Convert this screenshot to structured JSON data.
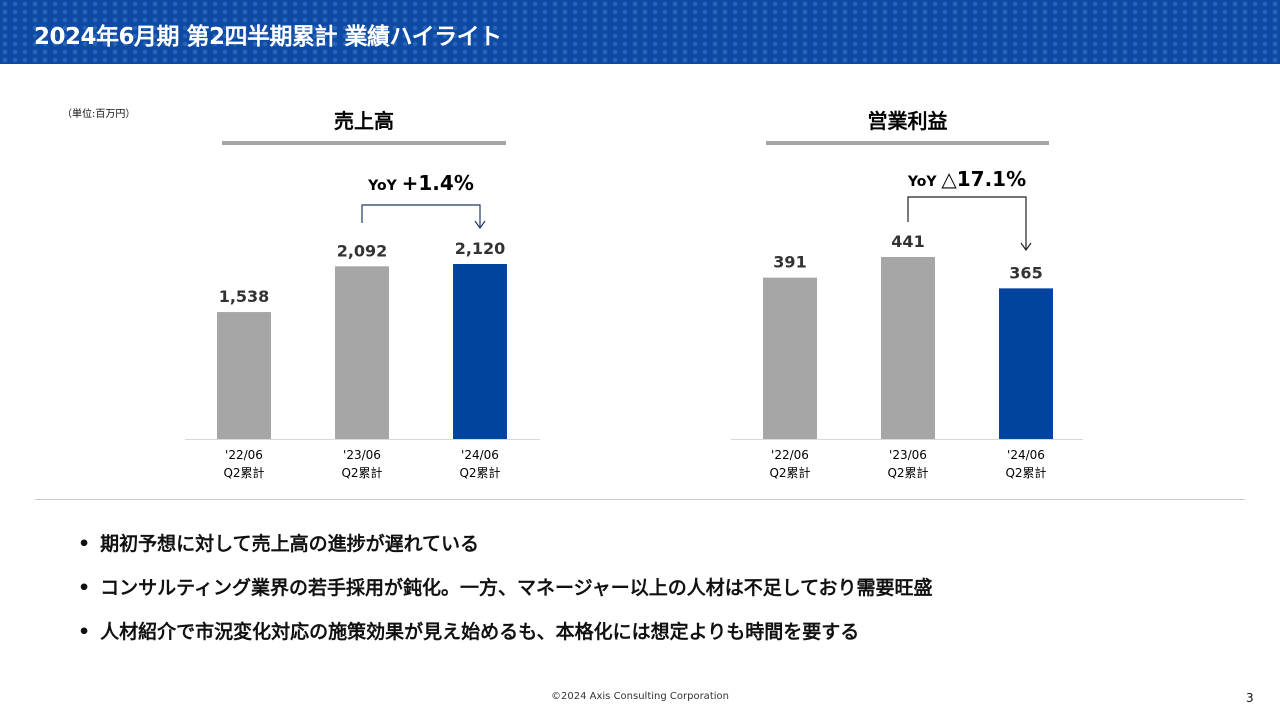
{
  "title": "2024年6月期 第2四半期累計 業績ハイライト",
  "unit": "（単位:百万円）",
  "chart_data": [
    {
      "type": "bar",
      "title": "売上高",
      "categories": [
        "'22/06 Q2累計",
        "'23/06 Q2累計",
        "'24/06 Q2累計"
      ],
      "values": [
        1538,
        2092,
        2120
      ],
      "data_labels": [
        "1,538",
        "2,092",
        "2,120"
      ],
      "yoy": "YoY +1.4%",
      "colors": [
        "#a6a6a6",
        "#a6a6a6",
        "#00449e"
      ]
    },
    {
      "type": "bar",
      "title": "営業利益",
      "categories": [
        "'22/06 Q2累計",
        "'23/06 Q2累計",
        "'24/06 Q2累計"
      ],
      "values": [
        391,
        441,
        365
      ],
      "data_labels": [
        "391",
        "441",
        "365"
      ],
      "yoy": "YoY △17.1%",
      "colors": [
        "#a6a6a6",
        "#a6a6a6",
        "#00449e"
      ]
    }
  ],
  "bullets": [
    "期初予想に対して売上高の進捗が遅れている",
    "コンサルティング業界の若手採用が鈍化。一方、マネージャー以上の人材は不足しており需要旺盛",
    "人材紹介で市況変化対応の施策効果が見え始めるも、本格化には想定よりも時間を要する"
  ],
  "footer": "©2024 Axis Consulting Corporation",
  "page_number": "3"
}
